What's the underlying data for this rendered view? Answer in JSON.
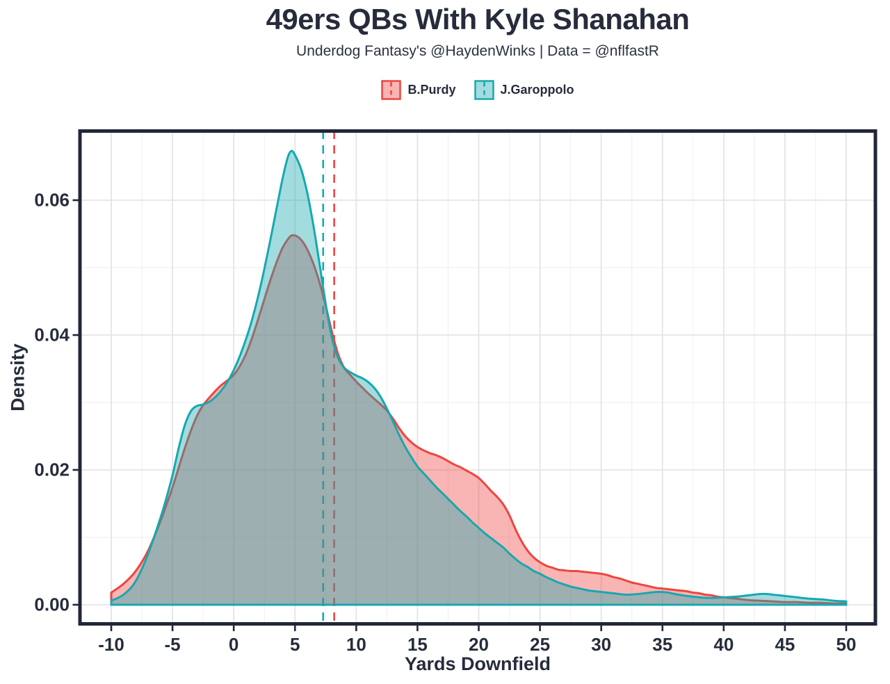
{
  "header": {
    "title": "49ers QBs With Kyle Shanahan",
    "subtitle": "Underdog Fantasy's @HaydenWinks | Data = @nflfastR"
  },
  "legend": {
    "position": "top-center",
    "entries": [
      {
        "label": "B.Purdy",
        "line_color": "#ee4540",
        "fill_color": "rgba(238,69,64,0.4)"
      },
      {
        "label": "J.Garoppolo",
        "line_color": "#16a8af",
        "fill_color": "rgba(22,168,175,0.4)"
      }
    ]
  },
  "axes": {
    "x_label": "Yards Downfield",
    "y_label": "Density"
  },
  "colors": {
    "text_and_border": "#262c3b",
    "panel_border": "#212737",
    "grid_major": "#e4e4e8",
    "grid_minor": "#f1f1f4",
    "background": "#ffffff",
    "purdy_red": "#ee4540",
    "garoppolo_teal": "#16a8af"
  },
  "chart_data": {
    "type": "area",
    "subtype": "kernel-density",
    "title": "49ers QBs With Kyle Shanahan",
    "subtitle": "Underdog Fantasy's @HaydenWinks | Data = @nflfastR",
    "xlabel": "Yards Downfield",
    "ylabel": "Density",
    "xlim": [
      -10,
      50
    ],
    "ylim": [
      0,
      0.0705
    ],
    "grid": "major+minor",
    "legend_position": "top",
    "x_ticks": [
      -10,
      -5,
      0,
      5,
      10,
      15,
      20,
      25,
      30,
      35,
      40,
      45,
      50
    ],
    "y_tick_labels": [
      "0.00",
      "0.02",
      "0.04",
      "0.06"
    ],
    "series": [
      {
        "name": "B.Purdy",
        "line_color": "#ee4540",
        "fill_color": "rgba(238,69,64,0.4)",
        "mean_x": 8.2,
        "points": [
          [
            -10,
            0.0018
          ],
          [
            -9,
            0.0031
          ],
          [
            -8,
            0.005
          ],
          [
            -7,
            0.008
          ],
          [
            -6,
            0.0123
          ],
          [
            -5.5,
            0.0148
          ],
          [
            -5,
            0.0174
          ],
          [
            -4.5,
            0.0203
          ],
          [
            -4,
            0.0232
          ],
          [
            -3.5,
            0.0258
          ],
          [
            -3,
            0.028
          ],
          [
            -2.5,
            0.0296
          ],
          [
            -2,
            0.0307
          ],
          [
            -1.5,
            0.0317
          ],
          [
            -1,
            0.0326
          ],
          [
            -0.5,
            0.0333
          ],
          [
            0,
            0.0341
          ],
          [
            0.5,
            0.0354
          ],
          [
            1,
            0.0372
          ],
          [
            1.5,
            0.0396
          ],
          [
            2,
            0.0424
          ],
          [
            2.5,
            0.0453
          ],
          [
            3,
            0.0482
          ],
          [
            3.5,
            0.0508
          ],
          [
            4,
            0.053
          ],
          [
            4.5,
            0.0544
          ],
          [
            4.8,
            0.0548
          ],
          [
            5.2,
            0.0546
          ],
          [
            5.6,
            0.0539
          ],
          [
            6,
            0.0527
          ],
          [
            6.5,
            0.0506
          ],
          [
            7,
            0.0478
          ],
          [
            7.5,
            0.0444
          ],
          [
            8,
            0.0406
          ],
          [
            8.5,
            0.0373
          ],
          [
            9,
            0.0352
          ],
          [
            9.5,
            0.0341
          ],
          [
            10,
            0.0331
          ],
          [
            10.5,
            0.0322
          ],
          [
            11,
            0.0313
          ],
          [
            11.5,
            0.0305
          ],
          [
            12,
            0.0297
          ],
          [
            12.5,
            0.0288
          ],
          [
            13,
            0.0276
          ],
          [
            13.5,
            0.0262
          ],
          [
            14,
            0.025
          ],
          [
            14.5,
            0.0241
          ],
          [
            15,
            0.0234
          ],
          [
            15.5,
            0.0229
          ],
          [
            16,
            0.0225
          ],
          [
            16.5,
            0.0222
          ],
          [
            17,
            0.0218
          ],
          [
            17.5,
            0.0213
          ],
          [
            18,
            0.0208
          ],
          [
            18.5,
            0.0204
          ],
          [
            19,
            0.0199
          ],
          [
            19.5,
            0.0194
          ],
          [
            20,
            0.0188
          ],
          [
            20.5,
            0.0179
          ],
          [
            21,
            0.0169
          ],
          [
            21.5,
            0.016
          ],
          [
            22,
            0.0149
          ],
          [
            22.5,
            0.0133
          ],
          [
            23,
            0.0112
          ],
          [
            23.5,
            0.0094
          ],
          [
            24,
            0.008
          ],
          [
            24.5,
            0.007
          ],
          [
            25,
            0.0063
          ],
          [
            25.5,
            0.0058
          ],
          [
            26,
            0.0055
          ],
          [
            26.5,
            0.0052
          ],
          [
            27,
            0.0051
          ],
          [
            27.5,
            0.005
          ],
          [
            28,
            0.005
          ],
          [
            28.5,
            0.0049
          ],
          [
            29,
            0.0048
          ],
          [
            29.5,
            0.0047
          ],
          [
            30,
            0.0046
          ],
          [
            30.5,
            0.0044
          ],
          [
            31,
            0.0041
          ],
          [
            31.5,
            0.0039
          ],
          [
            32,
            0.0036
          ],
          [
            32.5,
            0.0033
          ],
          [
            33,
            0.0031
          ],
          [
            33.5,
            0.0029
          ],
          [
            34,
            0.0027
          ],
          [
            34.5,
            0.0025
          ],
          [
            35,
            0.0024
          ],
          [
            35.5,
            0.0023
          ],
          [
            36,
            0.0022
          ],
          [
            36.5,
            0.0021
          ],
          [
            37,
            0.002
          ],
          [
            37.5,
            0.0018
          ],
          [
            38,
            0.0017
          ],
          [
            38.5,
            0.0015
          ],
          [
            39,
            0.0014
          ],
          [
            39.5,
            0.0012
          ],
          [
            40,
            0.0011
          ],
          [
            41,
            0.0009
          ],
          [
            42,
            0.0007
          ],
          [
            43,
            0.0006
          ],
          [
            44,
            0.0005
          ],
          [
            45,
            0.0004
          ],
          [
            46,
            0.0004
          ],
          [
            47,
            0.0003
          ],
          [
            48,
            0.0003
          ],
          [
            49,
            0.0002
          ],
          [
            50,
            0.0002
          ]
        ]
      },
      {
        "name": "J.Garoppolo",
        "line_color": "#16a8af",
        "fill_color": "rgba(22,168,175,0.4)",
        "mean_x": 7.3,
        "points": [
          [
            -10,
            0.0006
          ],
          [
            -9,
            0.0015
          ],
          [
            -8,
            0.0035
          ],
          [
            -7,
            0.0075
          ],
          [
            -6,
            0.0128
          ],
          [
            -5.5,
            0.0158
          ],
          [
            -5,
            0.0192
          ],
          [
            -4.5,
            0.0232
          ],
          [
            -4,
            0.0266
          ],
          [
            -3.5,
            0.0287
          ],
          [
            -3,
            0.0295
          ],
          [
            -2.5,
            0.0297
          ],
          [
            -2,
            0.0301
          ],
          [
            -1.5,
            0.0308
          ],
          [
            -1,
            0.0318
          ],
          [
            -0.5,
            0.0331
          ],
          [
            0,
            0.0348
          ],
          [
            0.5,
            0.0369
          ],
          [
            1,
            0.0394
          ],
          [
            1.5,
            0.0423
          ],
          [
            2,
            0.0458
          ],
          [
            2.5,
            0.0498
          ],
          [
            3,
            0.0542
          ],
          [
            3.5,
            0.0588
          ],
          [
            4,
            0.0633
          ],
          [
            4.4,
            0.0663
          ],
          [
            4.7,
            0.0673
          ],
          [
            5,
            0.0667
          ],
          [
            5.5,
            0.0646
          ],
          [
            6,
            0.0611
          ],
          [
            6.5,
            0.0563
          ],
          [
            7,
            0.0506
          ],
          [
            7.5,
            0.0447
          ],
          [
            8,
            0.0397
          ],
          [
            8.5,
            0.0367
          ],
          [
            9,
            0.0352
          ],
          [
            9.5,
            0.0345
          ],
          [
            10,
            0.034
          ],
          [
            10.5,
            0.0336
          ],
          [
            11,
            0.033
          ],
          [
            11.5,
            0.0321
          ],
          [
            12,
            0.0308
          ],
          [
            12.5,
            0.0291
          ],
          [
            13,
            0.0272
          ],
          [
            13.5,
            0.0252
          ],
          [
            14,
            0.0234
          ],
          [
            14.5,
            0.0219
          ],
          [
            15,
            0.0205
          ],
          [
            15.5,
            0.0195
          ],
          [
            16,
            0.0185
          ],
          [
            16.5,
            0.0175
          ],
          [
            17,
            0.0166
          ],
          [
            17.5,
            0.0157
          ],
          [
            18,
            0.0148
          ],
          [
            18.5,
            0.0139
          ],
          [
            19,
            0.0131
          ],
          [
            19.5,
            0.0122
          ],
          [
            20,
            0.0114
          ],
          [
            20.5,
            0.0106
          ],
          [
            21,
            0.0099
          ],
          [
            21.5,
            0.0092
          ],
          [
            22,
            0.0085
          ],
          [
            22.5,
            0.0076
          ],
          [
            23,
            0.0068
          ],
          [
            23.5,
            0.0061
          ],
          [
            24,
            0.0056
          ],
          [
            24.5,
            0.005
          ],
          [
            25,
            0.0046
          ],
          [
            25.5,
            0.0041
          ],
          [
            26,
            0.0037
          ],
          [
            26.5,
            0.0033
          ],
          [
            27,
            0.003
          ],
          [
            27.5,
            0.0027
          ],
          [
            28,
            0.0025
          ],
          [
            28.5,
            0.0023
          ],
          [
            29,
            0.0021
          ],
          [
            29.5,
            0.002
          ],
          [
            30,
            0.0019
          ],
          [
            31,
            0.0017
          ],
          [
            32,
            0.0015
          ],
          [
            33,
            0.0016
          ],
          [
            34,
            0.0018
          ],
          [
            34.5,
            0.0019
          ],
          [
            35,
            0.0019
          ],
          [
            35.5,
            0.0018
          ],
          [
            36,
            0.0016
          ],
          [
            37,
            0.0013
          ],
          [
            38,
            0.0011
          ],
          [
            39,
            0.001
          ],
          [
            40,
            0.0011
          ],
          [
            41,
            0.0012
          ],
          [
            42,
            0.0014
          ],
          [
            43,
            0.0016
          ],
          [
            43.5,
            0.0016
          ],
          [
            44,
            0.0015
          ],
          [
            45,
            0.0013
          ],
          [
            46,
            0.0011
          ],
          [
            47,
            0.0009
          ],
          [
            48,
            0.0008
          ],
          [
            49,
            0.0006
          ],
          [
            50,
            0.0005
          ]
        ]
      }
    ]
  }
}
